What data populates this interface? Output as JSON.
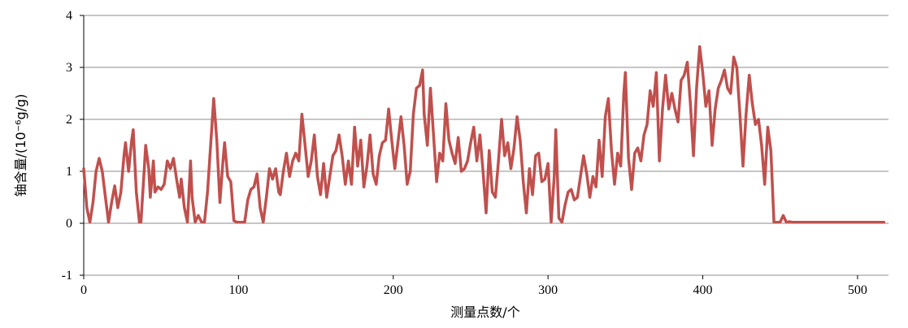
{
  "chart_data": {
    "type": "line",
    "xlabel": "测量点数/个",
    "ylabel": "铀含量/(10⁻⁶g/g)",
    "xlim": [
      0,
      520
    ],
    "ylim": [
      -1,
      4
    ],
    "xticks": [
      0,
      100,
      200,
      300,
      400,
      500
    ],
    "yticks": [
      -1,
      0,
      1,
      2,
      3,
      4
    ],
    "grid": "horizontal",
    "legend": "none",
    "series": [
      {
        "color": "#c0504d",
        "points": [
          [
            0,
            1.05
          ],
          [
            2,
            0.3
          ],
          [
            4,
            0.02
          ],
          [
            6,
            0.4
          ],
          [
            8,
            1.0
          ],
          [
            10,
            1.25
          ],
          [
            12,
            1.0
          ],
          [
            14,
            0.5
          ],
          [
            16,
            0.02
          ],
          [
            18,
            0.4
          ],
          [
            20,
            0.72
          ],
          [
            22,
            0.3
          ],
          [
            24,
            0.6
          ],
          [
            26,
            1.3
          ],
          [
            27,
            1.55
          ],
          [
            29,
            1.0
          ],
          [
            31,
            1.6
          ],
          [
            32,
            1.8
          ],
          [
            34,
            0.6
          ],
          [
            36,
            0.02
          ],
          [
            37,
            0.02
          ],
          [
            39,
            1.0
          ],
          [
            40,
            1.5
          ],
          [
            42,
            1.05
          ],
          [
            43,
            0.5
          ],
          [
            45,
            1.2
          ],
          [
            46,
            0.6
          ],
          [
            48,
            0.7
          ],
          [
            50,
            0.65
          ],
          [
            52,
            0.75
          ],
          [
            54,
            1.2
          ],
          [
            56,
            1.05
          ],
          [
            58,
            1.25
          ],
          [
            60,
            0.85
          ],
          [
            62,
            0.5
          ],
          [
            63,
            0.85
          ],
          [
            65,
            0.3
          ],
          [
            67,
            0.02
          ],
          [
            69,
            1.2
          ],
          [
            70,
            0.5
          ],
          [
            72,
            0.02
          ],
          [
            74,
            0.15
          ],
          [
            76,
            0.03
          ],
          [
            78,
            0.02
          ],
          [
            80,
            0.6
          ],
          [
            82,
            1.5
          ],
          [
            84,
            2.4
          ],
          [
            86,
            1.6
          ],
          [
            88,
            0.4
          ],
          [
            90,
            1.2
          ],
          [
            91,
            1.55
          ],
          [
            93,
            0.9
          ],
          [
            95,
            0.8
          ],
          [
            97,
            0.05
          ],
          [
            99,
            0.02
          ],
          [
            104,
            0.02
          ],
          [
            106,
            0.45
          ],
          [
            108,
            0.65
          ],
          [
            110,
            0.7
          ],
          [
            112,
            0.95
          ],
          [
            114,
            0.3
          ],
          [
            116,
            0.02
          ],
          [
            118,
            0.5
          ],
          [
            120,
            1.05
          ],
          [
            122,
            0.85
          ],
          [
            124,
            1.05
          ],
          [
            126,
            0.6
          ],
          [
            127,
            0.55
          ],
          [
            129,
            1.0
          ],
          [
            131,
            1.35
          ],
          [
            133,
            0.9
          ],
          [
            135,
            1.2
          ],
          [
            137,
            1.35
          ],
          [
            139,
            1.2
          ],
          [
            141,
            2.1
          ],
          [
            143,
            1.5
          ],
          [
            145,
            0.9
          ],
          [
            147,
            1.2
          ],
          [
            149,
            1.7
          ],
          [
            151,
            0.9
          ],
          [
            153,
            0.55
          ],
          [
            155,
            1.15
          ],
          [
            157,
            0.5
          ],
          [
            159,
            0.9
          ],
          [
            161,
            1.3
          ],
          [
            163,
            1.4
          ],
          [
            165,
            1.7
          ],
          [
            167,
            1.3
          ],
          [
            169,
            0.75
          ],
          [
            171,
            1.2
          ],
          [
            173,
            0.75
          ],
          [
            175,
            1.85
          ],
          [
            177,
            1.1
          ],
          [
            179,
            1.6
          ],
          [
            181,
            0.7
          ],
          [
            183,
            1.1
          ],
          [
            185,
            1.7
          ],
          [
            187,
            0.95
          ],
          [
            189,
            0.75
          ],
          [
            191,
            1.3
          ],
          [
            193,
            1.55
          ],
          [
            195,
            1.6
          ],
          [
            197,
            2.2
          ],
          [
            199,
            1.6
          ],
          [
            201,
            1.05
          ],
          [
            203,
            1.55
          ],
          [
            205,
            2.05
          ],
          [
            207,
            1.5
          ],
          [
            209,
            0.75
          ],
          [
            211,
            1.0
          ],
          [
            213,
            2.1
          ],
          [
            215,
            2.6
          ],
          [
            217,
            2.65
          ],
          [
            219,
            2.95
          ],
          [
            220,
            2.1
          ],
          [
            222,
            1.5
          ],
          [
            224,
            2.6
          ],
          [
            226,
            1.7
          ],
          [
            228,
            0.8
          ],
          [
            230,
            1.35
          ],
          [
            232,
            1.2
          ],
          [
            234,
            2.3
          ],
          [
            236,
            1.6
          ],
          [
            238,
            1.35
          ],
          [
            240,
            1.15
          ],
          [
            242,
            1.65
          ],
          [
            244,
            1.0
          ],
          [
            246,
            1.05
          ],
          [
            248,
            1.2
          ],
          [
            250,
            1.55
          ],
          [
            252,
            1.85
          ],
          [
            254,
            1.2
          ],
          [
            256,
            1.7
          ],
          [
            258,
            1.0
          ],
          [
            260,
            0.2
          ],
          [
            262,
            1.4
          ],
          [
            264,
            0.6
          ],
          [
            266,
            0.5
          ],
          [
            268,
            1.2
          ],
          [
            270,
            2.0
          ],
          [
            272,
            1.3
          ],
          [
            274,
            1.55
          ],
          [
            276,
            1.05
          ],
          [
            278,
            1.45
          ],
          [
            280,
            2.05
          ],
          [
            282,
            1.6
          ],
          [
            284,
            0.8
          ],
          [
            286,
            0.2
          ],
          [
            288,
            1.05
          ],
          [
            290,
            0.55
          ],
          [
            292,
            1.3
          ],
          [
            294,
            1.35
          ],
          [
            296,
            0.8
          ],
          [
            298,
            0.85
          ],
          [
            300,
            1.15
          ],
          [
            302,
            0.02
          ],
          [
            304,
            0.9
          ],
          [
            305,
            1.8
          ],
          [
            307,
            0.1
          ],
          [
            309,
            0.02
          ],
          [
            311,
            0.35
          ],
          [
            313,
            0.6
          ],
          [
            315,
            0.65
          ],
          [
            317,
            0.45
          ],
          [
            319,
            0.5
          ],
          [
            321,
            0.9
          ],
          [
            323,
            1.3
          ],
          [
            325,
            0.95
          ],
          [
            327,
            0.5
          ],
          [
            329,
            0.9
          ],
          [
            331,
            0.7
          ],
          [
            333,
            1.6
          ],
          [
            335,
            0.9
          ],
          [
            337,
            2.05
          ],
          [
            339,
            2.4
          ],
          [
            341,
            1.4
          ],
          [
            343,
            0.75
          ],
          [
            345,
            1.35
          ],
          [
            347,
            1.1
          ],
          [
            349,
            2.5
          ],
          [
            350,
            2.9
          ],
          [
            352,
            1.25
          ],
          [
            354,
            0.65
          ],
          [
            356,
            1.35
          ],
          [
            358,
            1.45
          ],
          [
            360,
            1.2
          ],
          [
            362,
            1.7
          ],
          [
            364,
            1.9
          ],
          [
            366,
            2.55
          ],
          [
            368,
            2.25
          ],
          [
            370,
            2.9
          ],
          [
            372,
            1.2
          ],
          [
            374,
            2.2
          ],
          [
            376,
            2.85
          ],
          [
            378,
            2.2
          ],
          [
            380,
            2.5
          ],
          [
            382,
            2.2
          ],
          [
            384,
            1.95
          ],
          [
            386,
            2.75
          ],
          [
            388,
            2.85
          ],
          [
            390,
            3.1
          ],
          [
            392,
            2.3
          ],
          [
            394,
            1.3
          ],
          [
            396,
            2.6
          ],
          [
            398,
            3.4
          ],
          [
            400,
            2.9
          ],
          [
            402,
            2.25
          ],
          [
            404,
            2.55
          ],
          [
            406,
            1.5
          ],
          [
            408,
            2.2
          ],
          [
            410,
            2.6
          ],
          [
            412,
            2.75
          ],
          [
            414,
            2.95
          ],
          [
            416,
            2.6
          ],
          [
            418,
            2.5
          ],
          [
            420,
            3.2
          ],
          [
            422,
            3.0
          ],
          [
            424,
            2.1
          ],
          [
            426,
            1.1
          ],
          [
            428,
            2.1
          ],
          [
            430,
            2.85
          ],
          [
            432,
            2.3
          ],
          [
            434,
            1.9
          ],
          [
            436,
            2.0
          ],
          [
            438,
            1.5
          ],
          [
            440,
            0.75
          ],
          [
            442,
            1.85
          ],
          [
            444,
            1.4
          ],
          [
            446,
            0.02
          ],
          [
            450,
            0.02
          ],
          [
            452,
            0.15
          ],
          [
            454,
            0.02
          ],
          [
            456,
            0.03
          ],
          [
            458,
            0.02
          ],
          [
            517,
            0.02
          ]
        ]
      }
    ]
  }
}
